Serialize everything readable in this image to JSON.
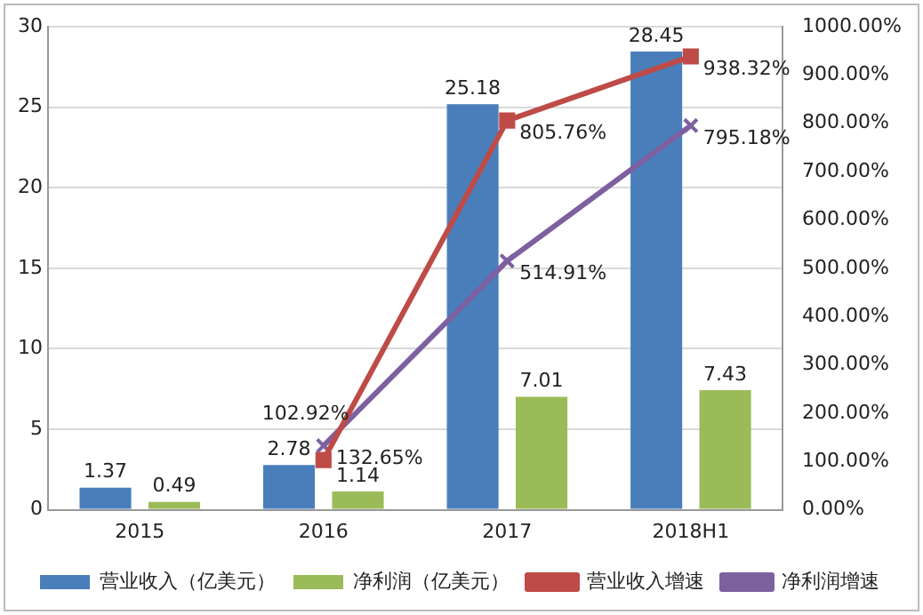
{
  "chart_data": {
    "type": "bar",
    "categories": [
      "2015",
      "2016",
      "2017",
      "2018H1"
    ],
    "series": [
      {
        "name": "营业收入（亿美元）",
        "color": "#4a7ebb",
        "values": [
          1.37,
          2.78,
          25.18,
          28.45
        ],
        "value_labels": [
          "1.37",
          "2.78",
          "25.18",
          "28.45"
        ]
      },
      {
        "name": "净利润（亿美元）",
        "color": "#9bbb59",
        "values": [
          0.49,
          1.14,
          7.01,
          7.43
        ],
        "value_labels": [
          "0.49",
          "1.14",
          "7.01",
          "7.43"
        ]
      },
      {
        "name": "营业收入增速",
        "type": "line",
        "axis": "y2",
        "color": "#be4b48",
        "marker": "square",
        "values": [
          null,
          102.92,
          805.76,
          938.32
        ],
        "value_labels": [
          null,
          "102.92%",
          "805.76%",
          "938.32%"
        ]
      },
      {
        "name": "净利润增速",
        "type": "line",
        "axis": "y2",
        "color": "#7d60a0",
        "marker": "cross",
        "values": [
          null,
          132.65,
          514.91,
          795.18
        ],
        "value_labels": [
          null,
          "132.65%",
          "514.91%",
          "795.18%"
        ]
      }
    ],
    "ylim": [
      0,
      30
    ],
    "yticks": [
      0,
      5,
      10,
      15,
      20,
      25,
      30
    ],
    "y2lim": [
      0,
      1000
    ],
    "y2ticks": [
      {
        "value": 0,
        "label": "0.00%"
      },
      {
        "value": 100,
        "label": "100.00%"
      },
      {
        "value": 200,
        "label": "200.00%"
      },
      {
        "value": 300,
        "label": "300.00%"
      },
      {
        "value": 400,
        "label": "400.00%"
      },
      {
        "value": 500,
        "label": "500.00%"
      },
      {
        "value": 600,
        "label": "600.00%"
      },
      {
        "value": 700,
        "label": "700.00%"
      },
      {
        "value": 800,
        "label": "800.00%"
      },
      {
        "value": 900,
        "label": "900.00%"
      },
      {
        "value": 1000,
        "label": "1000.00%"
      }
    ],
    "grid": "y",
    "legend": "bottom"
  }
}
